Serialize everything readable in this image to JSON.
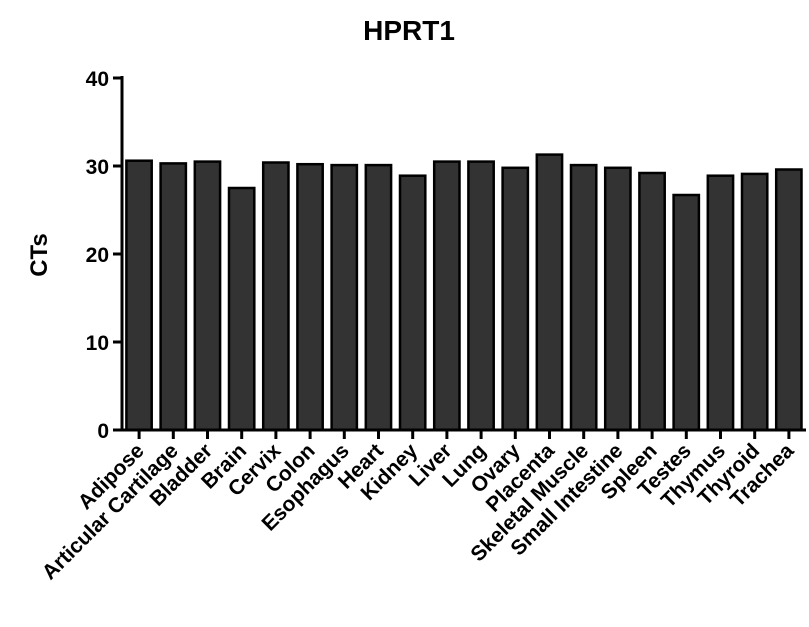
{
  "chart_data": {
    "type": "bar",
    "title": "HPRT1",
    "xlabel": "",
    "ylabel": "CTs",
    "ylim": [
      0,
      40
    ],
    "yticks": [
      0,
      10,
      20,
      30,
      40
    ],
    "grid": false,
    "bar_color": "#333333",
    "categories": [
      "Adipose",
      "Articular Cartilage",
      "Bladder",
      "Brain",
      "Cervix",
      "Colon",
      "Esophagus",
      "Heart",
      "Kidney",
      "Liver",
      "Lung",
      "Ovary",
      "Placenta",
      "Skeletal Muscle",
      "Small Intestine",
      "Spleen",
      "Testes",
      "Thymus",
      "Thyroid",
      "Trachea"
    ],
    "values": [
      30.6,
      30.3,
      30.5,
      27.5,
      30.4,
      30.2,
      30.1,
      30.1,
      28.9,
      30.5,
      30.5,
      29.8,
      31.3,
      30.1,
      29.8,
      29.2,
      26.7,
      28.9,
      29.1,
      29.6
    ]
  }
}
